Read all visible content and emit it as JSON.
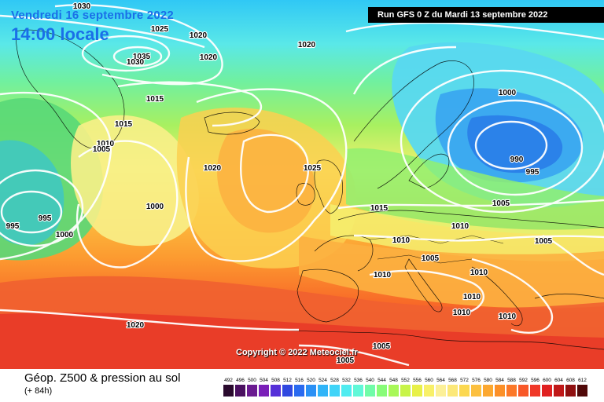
{
  "header": {
    "valid_date": "Vendredi 16 septembre 2022",
    "valid_time": "14:00 locale",
    "run_info": "Run GFS 0 Z du Mardi 13 septembre 2022"
  },
  "copyright": "Copyright © 2022 Meteociel.fr",
  "footer": {
    "title": "Géop. Z500 & pression au sol",
    "subtitle": "(+ 84h)"
  },
  "legend": {
    "units_values": [
      "492",
      "496",
      "500",
      "504",
      "508",
      "512",
      "516",
      "520",
      "524",
      "528",
      "532",
      "536",
      "540",
      "544",
      "548",
      "552",
      "556",
      "560",
      "564",
      "568",
      "572",
      "576",
      "580",
      "584",
      "588",
      "592",
      "596",
      "600",
      "604",
      "608",
      "612"
    ],
    "colors": [
      "#2a0a2e",
      "#4a1060",
      "#6a1a90",
      "#7a1fb8",
      "#5530d8",
      "#3048e0",
      "#2a6af0",
      "#2a90f5",
      "#30b4f8",
      "#40d4f8",
      "#50ecf0",
      "#60f8d8",
      "#70fca8",
      "#88fc78",
      "#a8f858",
      "#c8f448",
      "#e8f048",
      "#f8f068",
      "#fcf098",
      "#fce878",
      "#fcd850",
      "#fcc040",
      "#fca830",
      "#fc9028",
      "#fc7828",
      "#f85828",
      "#f03828",
      "#e02020",
      "#c01818",
      "#901010",
      "#500808"
    ]
  },
  "isobar_labels": [
    {
      "text": "1030"
    },
    {
      "text": "1025"
    },
    {
      "text": "1020"
    },
    {
      "text": "1020"
    },
    {
      "text": "1035"
    },
    {
      "text": "1030"
    },
    {
      "text": "1015"
    },
    {
      "text": "1015"
    },
    {
      "text": "1010"
    },
    {
      "text": "1005"
    },
    {
      "text": "1020"
    },
    {
      "text": "1000"
    },
    {
      "text": "995"
    },
    {
      "text": "995"
    },
    {
      "text": "1000"
    },
    {
      "text": "1020"
    },
    {
      "text": "1025"
    },
    {
      "text": "1015"
    },
    {
      "text": "1000"
    },
    {
      "text": "990"
    },
    {
      "text": "995"
    },
    {
      "text": "1005"
    },
    {
      "text": "1010"
    },
    {
      "text": "1010"
    },
    {
      "text": "1005"
    },
    {
      "text": "1010"
    },
    {
      "text": "1005"
    },
    {
      "text": "1010"
    },
    {
      "text": "1010"
    },
    {
      "text": "1010"
    },
    {
      "text": "1010"
    },
    {
      "text": "1020"
    },
    {
      "text": "1005"
    },
    {
      "text": "1005"
    }
  ]
}
